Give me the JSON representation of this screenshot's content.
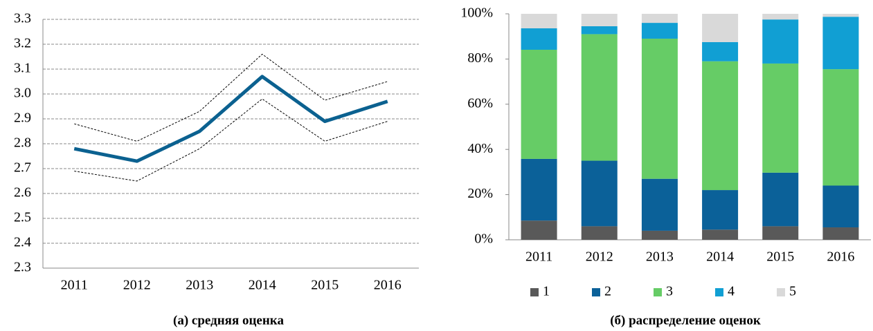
{
  "chart_data": [
    {
      "type": "line",
      "caption": "(а) средняя оценка",
      "categories": [
        "2011",
        "2012",
        "2013",
        "2014",
        "2015",
        "2016"
      ],
      "series": [
        {
          "color": "#0b6190",
          "line_style": "solid",
          "values": [
            2.78,
            2.73,
            2.85,
            3.07,
            2.89,
            2.97
          ]
        },
        {
          "color": "#000000",
          "line_style": "dashed",
          "values": [
            2.88,
            2.81,
            2.93,
            3.16,
            2.975,
            3.05
          ]
        },
        {
          "color": "#000000",
          "line_style": "dashed",
          "values": [
            2.69,
            2.65,
            2.78,
            2.98,
            2.81,
            2.89
          ]
        }
      ],
      "ylim": [
        2.3,
        3.3
      ],
      "yticks": [
        2.3,
        2.4,
        2.5,
        2.6,
        2.7,
        2.8,
        2.9,
        {
          "value": 3.0,
          "label": "3.0"
        },
        3.1,
        3.2,
        3.3
      ],
      "grid": true
    },
    {
      "type": "bar",
      "stacked": true,
      "caption": "(б) распределение оценок",
      "categories": [
        "2011",
        "2012",
        "2013",
        "2014",
        "2015",
        "2016"
      ],
      "series": [
        {
          "name": "1",
          "color": "#595959",
          "values": [
            8.5,
            6,
            4,
            4.5,
            6,
            5.5
          ]
        },
        {
          "name": "2",
          "color": "#0b6199",
          "values": [
            27.3,
            29,
            23,
            17.5,
            23.7,
            18.5
          ]
        },
        {
          "name": "3",
          "color": "#66cc66",
          "values": [
            48.3,
            56,
            62,
            57,
            48.3,
            51.5
          ]
        },
        {
          "name": "4",
          "color": "#119fd3",
          "values": [
            9.5,
            3.5,
            7,
            8.5,
            19.5,
            23.2
          ]
        },
        {
          "name": "5",
          "color": "#d9d9d9",
          "values": [
            6.4,
            5.5,
            4,
            12.5,
            2.5,
            1.3
          ]
        }
      ],
      "ylim": [
        0,
        100
      ],
      "yticks": [
        {
          "value": 0,
          "label": "0%"
        },
        {
          "value": 20,
          "label": "20%"
        },
        {
          "value": 40,
          "label": "40%"
        },
        {
          "value": 60,
          "label": "60%"
        },
        {
          "value": 80,
          "label": "80%"
        },
        {
          "value": 100,
          "label": "100%"
        }
      ],
      "grid": false,
      "legend": "bottom"
    }
  ]
}
